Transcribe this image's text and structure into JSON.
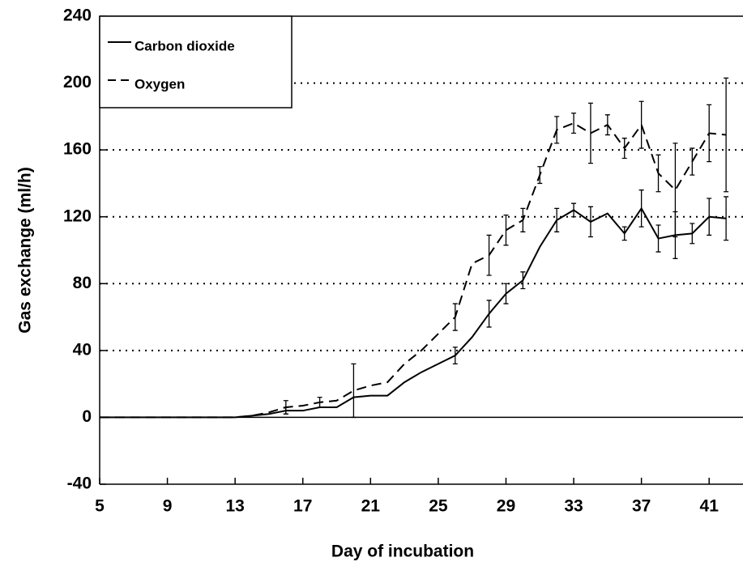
{
  "chart_data": {
    "type": "line",
    "xlabel": "Day of incubation",
    "ylabel": "Gas exchange (ml/h)",
    "x": [
      5,
      6,
      7,
      8,
      9,
      10,
      11,
      12,
      13,
      14,
      15,
      16,
      17,
      18,
      19,
      20,
      21,
      22,
      23,
      24,
      25,
      26,
      27,
      28,
      29,
      30,
      31,
      32,
      33,
      34,
      35,
      36,
      37,
      38,
      39,
      40,
      41,
      42
    ],
    "series": [
      {
        "name": "Carbon dioxide",
        "color": "#000000",
        "dash": "solid",
        "values": [
          0,
          0,
          0,
          0,
          0,
          0,
          0,
          0,
          0,
          1,
          2,
          4,
          4,
          6,
          6,
          12,
          13,
          13,
          21,
          27,
          32,
          37,
          48,
          62,
          74,
          82,
          102,
          118,
          124,
          117,
          122,
          110,
          125,
          107,
          109,
          110,
          120,
          119
        ],
        "errors": [
          null,
          null,
          null,
          null,
          null,
          null,
          null,
          null,
          null,
          null,
          null,
          2,
          null,
          null,
          null,
          null,
          null,
          null,
          null,
          null,
          null,
          5,
          null,
          8,
          6,
          5,
          null,
          7,
          4,
          9,
          null,
          4,
          11,
          8,
          14,
          6,
          11,
          13
        ]
      },
      {
        "name": "Oxygen",
        "color": "#000000",
        "dash": "dashed",
        "values": [
          0,
          0,
          0,
          0,
          0,
          0,
          0,
          0,
          0,
          1,
          3,
          6,
          7,
          9,
          10,
          16,
          19,
          21,
          32,
          40,
          50,
          60,
          92,
          97,
          112,
          118,
          145,
          172,
          176,
          170,
          175,
          161,
          175,
          146,
          136,
          153,
          170,
          169
        ],
        "errors": [
          null,
          null,
          null,
          null,
          null,
          null,
          null,
          null,
          null,
          null,
          null,
          4,
          null,
          3,
          null,
          16,
          null,
          null,
          null,
          null,
          null,
          8,
          null,
          12,
          9,
          7,
          5,
          8,
          6,
          18,
          6,
          6,
          14,
          11,
          28,
          8,
          17,
          34
        ]
      }
    ],
    "xlim": [
      5,
      43
    ],
    "xticks": [
      5,
      9,
      13,
      17,
      21,
      25,
      29,
      33,
      37,
      41
    ],
    "ylim": [
      -40,
      240
    ],
    "yticks": [
      -40,
      0,
      40,
      80,
      120,
      160,
      200,
      240
    ],
    "grid": true,
    "legend": "upper left"
  }
}
